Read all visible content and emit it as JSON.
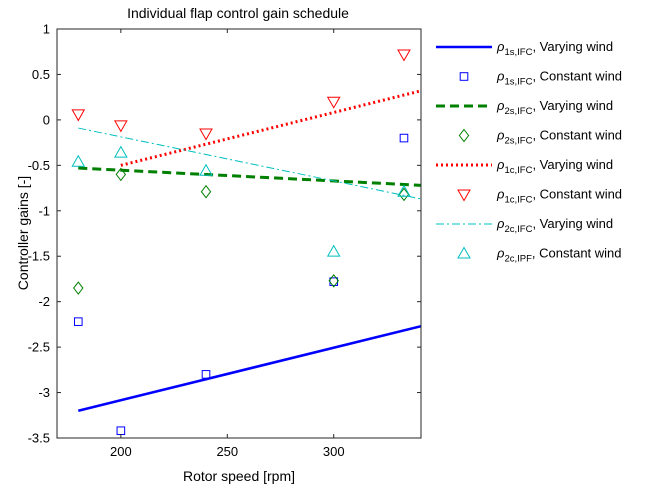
{
  "chart_data": {
    "type": "scatter",
    "title": "Individual flap control gain schedule",
    "xlabel": "Rotor speed [rpm]",
    "ylabel": "Controller gains [-]",
    "xlim": [
      170,
      341
    ],
    "ylim": [
      -3.5,
      1
    ],
    "xticks": [
      200,
      250,
      300
    ],
    "yticks": [
      1,
      0.5,
      0,
      -0.5,
      -1,
      -1.5,
      -2,
      -2.5,
      -3,
      -3.5
    ],
    "xtick_labels": [
      "200",
      "250",
      "300"
    ],
    "ytick_labels": [
      "1",
      "0.5",
      "0",
      "-0.5",
      "-1",
      "-1.5",
      "-2",
      "-2.5",
      "-3",
      "-3.5"
    ],
    "grid": false,
    "legend_position": "outside-right",
    "series": [
      {
        "kind": "line",
        "style": "solid",
        "color": "#0000ff",
        "sym": "ρ",
        "sub": "1s,IFC",
        "suffix": ", Varying wind",
        "x": [
          180,
          341
        ],
        "y": [
          -3.2,
          -2.27
        ]
      },
      {
        "kind": "marker",
        "marker": "square",
        "color": "#0000ff",
        "sym": "ρ",
        "sub": "1s,IFC",
        "suffix": ", Constant wind",
        "x": [
          180,
          200,
          240,
          300,
          333
        ],
        "y": [
          -2.22,
          -3.42,
          -2.8,
          -1.78,
          -0.2
        ]
      },
      {
        "kind": "line",
        "style": "dashed",
        "color": "#008000",
        "sym": "ρ",
        "sub": "2s,IFC",
        "suffix": ", Varying wind",
        "x": [
          180,
          341
        ],
        "y": [
          -0.53,
          -0.72
        ]
      },
      {
        "kind": "marker",
        "marker": "diamond",
        "color": "#008000",
        "sym": "ρ",
        "sub": "2s,IFC",
        "suffix": ", Constant wind",
        "x": [
          180,
          200,
          240,
          300,
          333
        ],
        "y": [
          -1.85,
          -0.6,
          -0.79,
          -1.77,
          -0.82
        ]
      },
      {
        "kind": "line",
        "style": "dotted",
        "color": "#ff0000",
        "sym": "ρ",
        "sub": "1c,IFC",
        "suffix": ", Varying wind",
        "x": [
          200,
          341
        ],
        "y": [
          -0.5,
          0.32
        ]
      },
      {
        "kind": "marker",
        "marker": "triangle-down",
        "color": "#ff0000",
        "sym": "ρ",
        "sub": "1c,IFC",
        "suffix": ", Constant wind",
        "x": [
          180,
          200,
          240,
          300,
          333
        ],
        "y": [
          0.06,
          -0.06,
          -0.15,
          0.2,
          0.72
        ]
      },
      {
        "kind": "line",
        "style": "dashdot",
        "color": "#00bfbf",
        "sym": "ρ",
        "sub": "2c,IFC",
        "suffix": ", Varying wind",
        "x": [
          180,
          341
        ],
        "y": [
          -0.09,
          -0.87
        ]
      },
      {
        "kind": "marker",
        "marker": "triangle-up",
        "color": "#00bfbf",
        "sym": "ρ",
        "sub": "2c,IPF",
        "suffix": ", Constant wind",
        "x": [
          180,
          200,
          240,
          300,
          333
        ],
        "y": [
          -0.46,
          -0.36,
          -0.56,
          -1.45,
          -0.79
        ]
      }
    ]
  }
}
